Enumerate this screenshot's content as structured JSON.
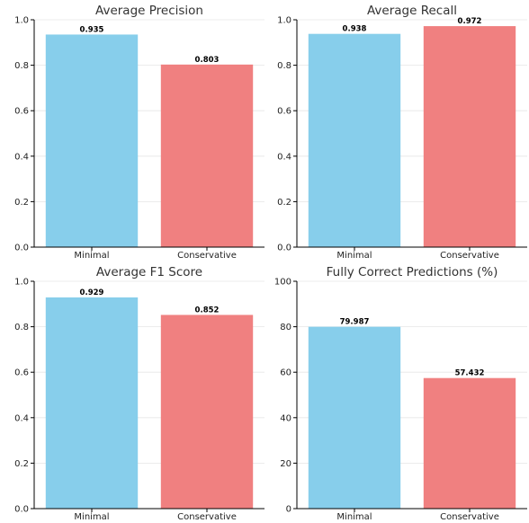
{
  "chart_data": [
    {
      "type": "bar",
      "title": "Average Precision",
      "categories": [
        "Minimal",
        "Conservative"
      ],
      "values": [
        0.935,
        0.803
      ],
      "value_labels": [
        "0.935",
        "0.803"
      ],
      "ylim": [
        0,
        1.0
      ],
      "yticks": [
        "0.0",
        "0.2",
        "0.4",
        "0.6",
        "0.8",
        "1.0"
      ],
      "grid": true,
      "colors": [
        "#87ceeb",
        "#f08080"
      ]
    },
    {
      "type": "bar",
      "title": "Average Recall",
      "categories": [
        "Minimal",
        "Conservative"
      ],
      "values": [
        0.938,
        0.972
      ],
      "value_labels": [
        "0.938",
        "0.972"
      ],
      "ylim": [
        0,
        1.0
      ],
      "yticks": [
        "0.0",
        "0.2",
        "0.4",
        "0.6",
        "0.8",
        "1.0"
      ],
      "grid": true,
      "colors": [
        "#87ceeb",
        "#f08080"
      ]
    },
    {
      "type": "bar",
      "title": "Average F1 Score",
      "categories": [
        "Minimal",
        "Conservative"
      ],
      "values": [
        0.929,
        0.852
      ],
      "value_labels": [
        "0.929",
        "0.852"
      ],
      "ylim": [
        0,
        1.0
      ],
      "yticks": [
        "0.0",
        "0.2",
        "0.4",
        "0.6",
        "0.8",
        "1.0"
      ],
      "grid": true,
      "colors": [
        "#87ceeb",
        "#f08080"
      ]
    },
    {
      "type": "bar",
      "title": "Fully Correct Predictions (%)",
      "categories": [
        "Minimal",
        "Conservative"
      ],
      "values": [
        79.987,
        57.432
      ],
      "value_labels": [
        "79.987",
        "57.432"
      ],
      "ylim": [
        0,
        100
      ],
      "yticks": [
        "0",
        "20",
        "40",
        "60",
        "80",
        "100"
      ],
      "grid": true,
      "colors": [
        "#87ceeb",
        "#f08080"
      ]
    }
  ]
}
